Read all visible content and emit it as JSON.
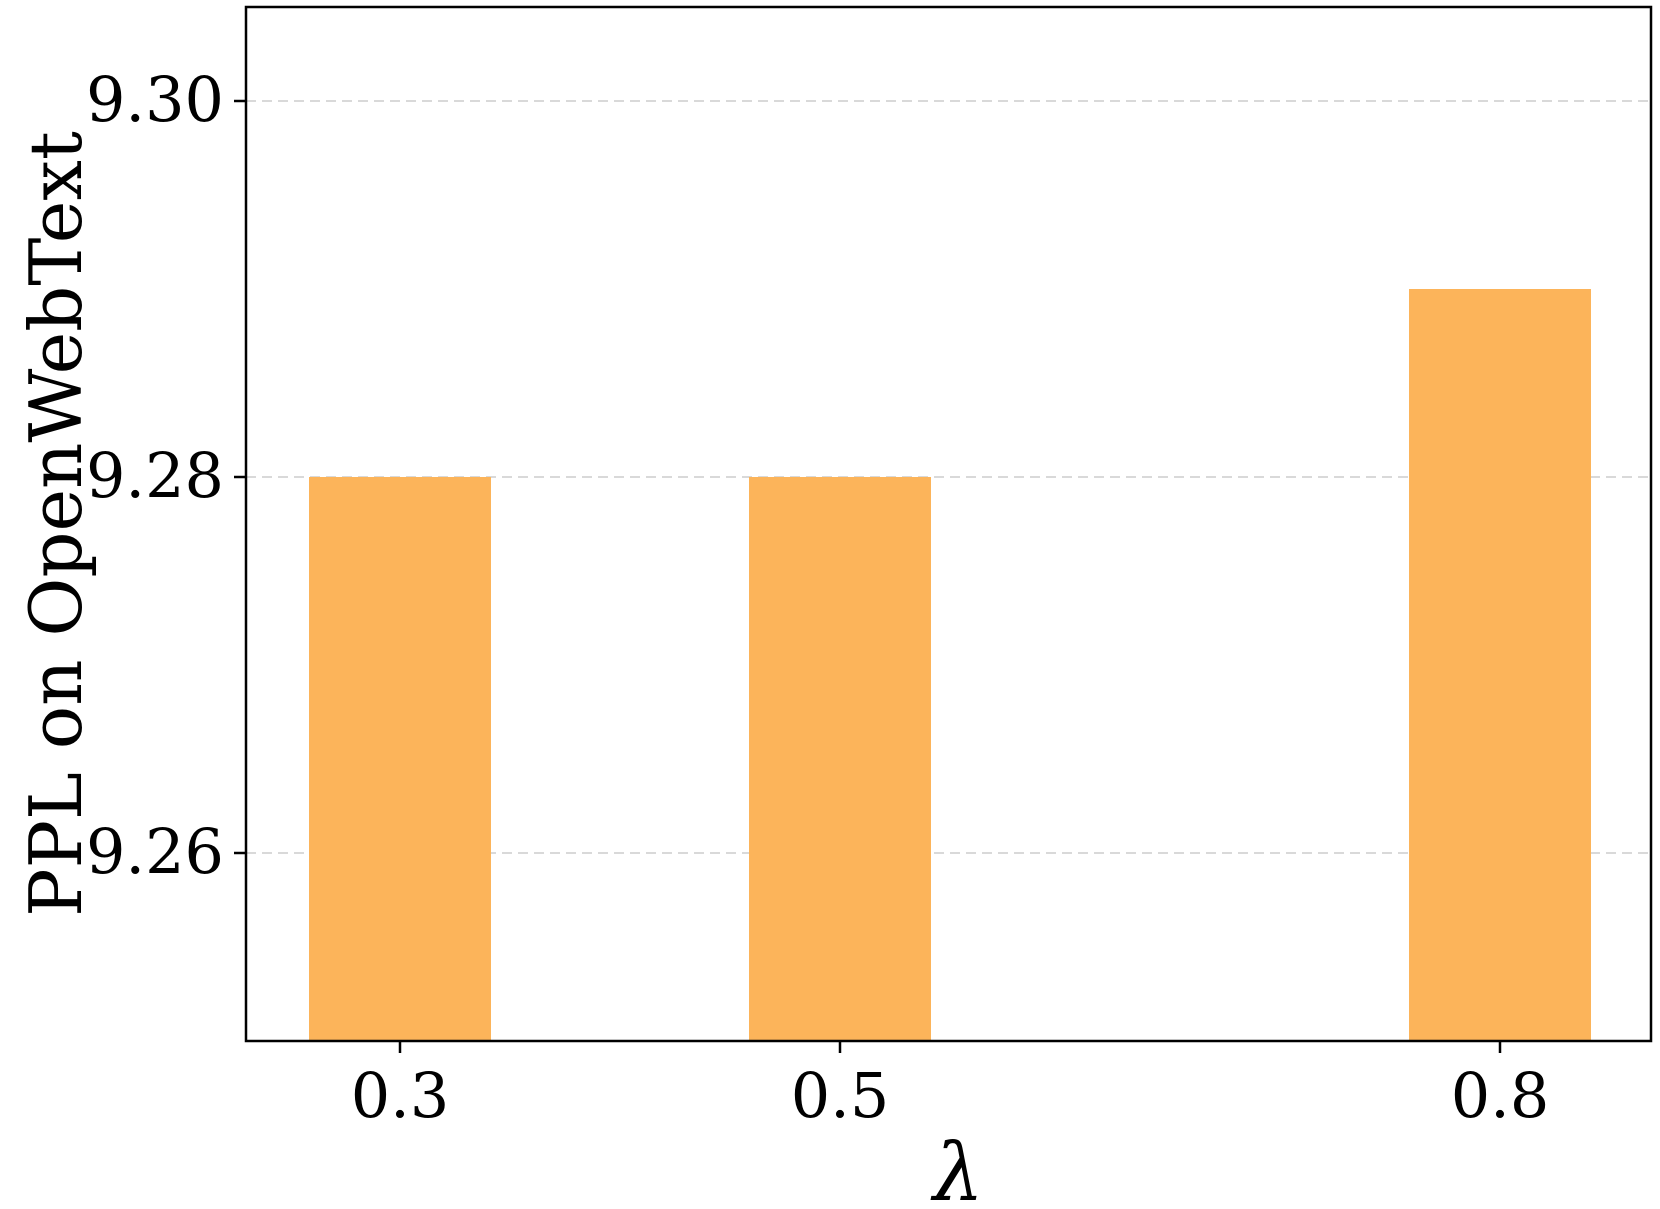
{
  "chart_data": {
    "type": "bar",
    "categories": [
      "0.3",
      "0.5",
      "0.8"
    ],
    "values": [
      9.28,
      9.28,
      9.29
    ],
    "xlabel": "λ",
    "ylabel": "PPL on OpenWebText",
    "ylim": [
      9.25,
      9.305
    ],
    "yticks": [
      9.26,
      9.28,
      9.3
    ],
    "ytick_labels": [
      "9.26",
      "9.28",
      "9.30"
    ],
    "grid": "y, dashed",
    "bar_color": "#FCB45A",
    "grid_color": "#D9D9D9"
  }
}
